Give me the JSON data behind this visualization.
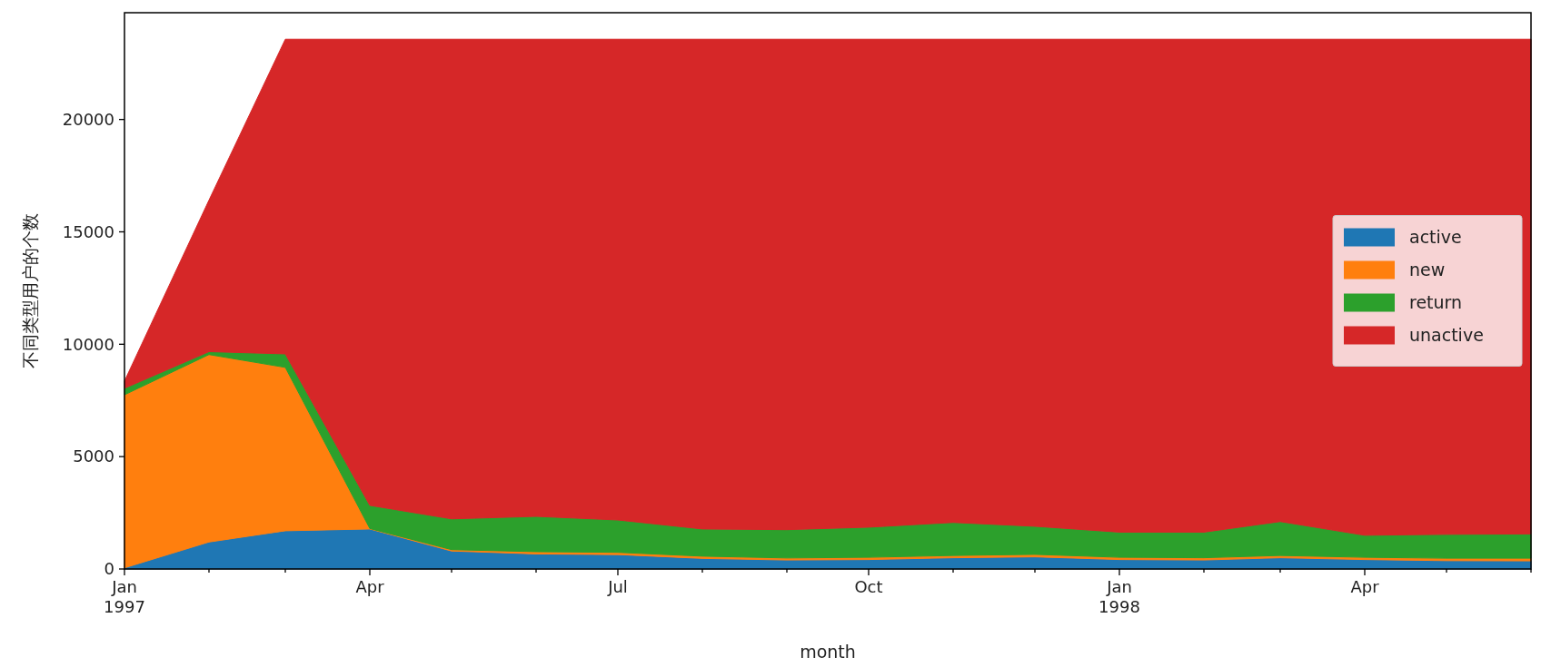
{
  "chart_data": {
    "type": "area",
    "stacked": true,
    "xlabel": "month",
    "ylabel": "不同类型用户的个数",
    "x": [
      "1997-01",
      "1997-02",
      "1997-03",
      "1997-04",
      "1997-05",
      "1997-06",
      "1997-07",
      "1997-08",
      "1997-09",
      "1997-10",
      "1997-11",
      "1997-12",
      "1998-01",
      "1998-02",
      "1998-03",
      "1998-04",
      "1998-05",
      "1998-06"
    ],
    "series": [
      {
        "name": "active",
        "color": "#1f77b4",
        "values": [
          50,
          1200,
          1700,
          1780,
          800,
          670,
          640,
          470,
          400,
          420,
          500,
          540,
          420,
          400,
          500,
          420,
          370,
          360
        ]
      },
      {
        "name": "new",
        "color": "#ff7f0e",
        "values": [
          7700,
          8340,
          7270,
          20,
          60,
          100,
          100,
          100,
          90,
          100,
          100,
          110,
          100,
          100,
          100,
          100,
          110,
          120
        ]
      },
      {
        "name": "return",
        "color": "#2ca02c",
        "values": [
          290,
          130,
          600,
          1030,
          1370,
          1570,
          1440,
          1210,
          1260,
          1340,
          1470,
          1250,
          1120,
          1140,
          1510,
          980,
          1060,
          1080
        ]
      },
      {
        "name": "unactive",
        "color": "#d62728",
        "values": [
          320,
          6740,
          14000,
          20740,
          21340,
          21230,
          21390,
          21790,
          21820,
          21710,
          21500,
          21670,
          21930,
          21930,
          21460,
          22070,
          22030,
          22010
        ]
      }
    ],
    "xlim": [
      "1997-01",
      "1998-06"
    ],
    "xticks": [
      {
        "value": "1997-01",
        "label": "Jan\n1997"
      },
      {
        "value": "1997-02",
        "label": null
      },
      {
        "value": "1997-03",
        "label": null
      },
      {
        "value": "1997-04",
        "label": "Apr"
      },
      {
        "value": "1997-05",
        "label": null
      },
      {
        "value": "1997-06",
        "label": null
      },
      {
        "value": "1997-07",
        "label": "Jul"
      },
      {
        "value": "1997-08",
        "label": null
      },
      {
        "value": "1997-09",
        "label": null
      },
      {
        "value": "1997-10",
        "label": "Oct"
      },
      {
        "value": "1997-11",
        "label": null
      },
      {
        "value": "1997-12",
        "label": null
      },
      {
        "value": "1998-01",
        "label": "Jan\n1998"
      },
      {
        "value": "1998-02",
        "label": null
      },
      {
        "value": "1998-03",
        "label": null
      },
      {
        "value": "1998-04",
        "label": "Apr"
      },
      {
        "value": "1998-05",
        "label": null
      },
      {
        "value": "1998-06",
        "label": null
      }
    ],
    "ylim": [
      0,
      24750
    ],
    "yticks": [
      0,
      5000,
      10000,
      15000,
      20000
    ],
    "legend": "right"
  }
}
